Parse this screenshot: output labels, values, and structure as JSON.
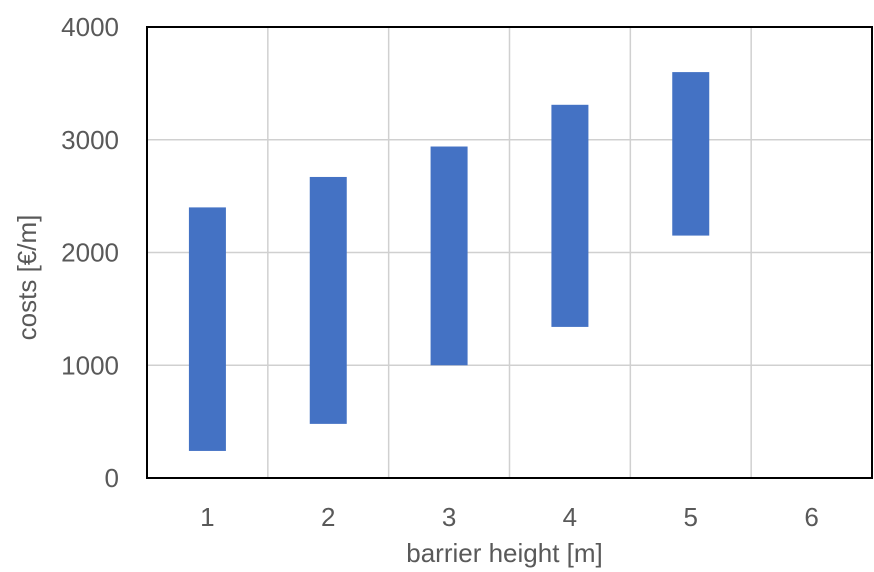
{
  "chart_data": {
    "type": "bar",
    "subtype": "floating-range",
    "title": "",
    "xlabel": "barrier height [m]",
    "ylabel": "costs [€/m]",
    "x_ticks": [
      "1",
      "2",
      "3",
      "4",
      "5",
      "6"
    ],
    "y_ticks": [
      "0",
      "1000",
      "2000",
      "3000",
      "4000"
    ],
    "xlim": [
      0.5,
      6.5
    ],
    "ylim": [
      0,
      4000
    ],
    "grid": true,
    "legend": "none",
    "bar_color": "#4472C4",
    "series": [
      {
        "ranges": [
          {
            "x": 1,
            "low": 240,
            "high": 2400
          },
          {
            "x": 2,
            "low": 480,
            "high": 2670
          },
          {
            "x": 3,
            "low": 1000,
            "high": 2940
          },
          {
            "x": 4,
            "low": 1340,
            "high": 3310
          },
          {
            "x": 5,
            "low": 2150,
            "high": 3600
          }
        ]
      }
    ]
  }
}
